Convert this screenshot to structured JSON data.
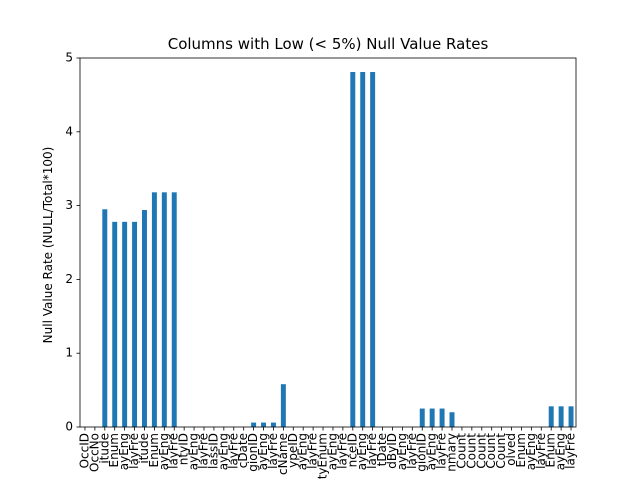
{
  "chart_data": {
    "type": "bar",
    "title": "Columns with Low (< 5%) Null Value Rates",
    "xlabel": "",
    "ylabel": "Null Value Rate (NULL/Total*100)",
    "ylim": [
      0,
      5
    ],
    "yticks": [
      0,
      1,
      2,
      3,
      4,
      5
    ],
    "grid": false,
    "bar_color": "#1f77b4",
    "categories": [
      "OccID",
      "OccNo",
      "itude",
      "Enum",
      "ayEng",
      "layFre",
      "itude",
      "Enum",
      "ayEng",
      "layFre",
      "ntyID",
      "ayEng",
      "layFre",
      "lassID",
      "ayEng",
      "layFre",
      "cDate",
      "gionID",
      "ayEng",
      "layFre",
      "cName",
      "ypeID",
      "ayEng",
      "layFre",
      "tyEnum",
      "ayEng",
      "layFre",
      "nceID",
      "ayEng",
      "layFre",
      "tDate",
      "dByID",
      "ayEng",
      "layFre",
      "gionID",
      "ayEng",
      "layFre",
      "nmary",
      "Count",
      "Count",
      "Count",
      "Count",
      "Count",
      "olved",
      "Enum",
      "ayEng",
      "layFre",
      "Enum",
      "ayEng",
      "layFre"
    ],
    "values": [
      0,
      0,
      2.95,
      2.78,
      2.78,
      2.78,
      2.94,
      3.18,
      3.18,
      3.18,
      0,
      0,
      0,
      0,
      0,
      0,
      0,
      0.06,
      0.06,
      0.06,
      0.58,
      0,
      0,
      0,
      0,
      0,
      0,
      4.81,
      4.81,
      4.81,
      0,
      0,
      0,
      0,
      0.25,
      0.25,
      0.25,
      0.2,
      0,
      0,
      0,
      0,
      0,
      0,
      0,
      0,
      0,
      0.28,
      0.28,
      0.28
    ]
  }
}
